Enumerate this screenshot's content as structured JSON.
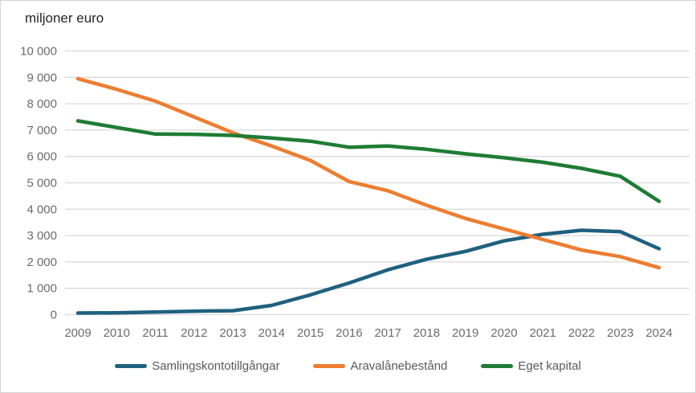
{
  "title": "miljoner euro",
  "colors": {
    "blue": "#1F607F",
    "orange": "#ED7D31",
    "green": "#1E7C34",
    "grid": "#D9D9D9",
    "tick_text": "#6B6B6B",
    "title_text": "#262626"
  },
  "chart_data": {
    "type": "line",
    "title": "miljoner euro",
    "categories": [
      "2009",
      "2010",
      "2011",
      "2012",
      "2013",
      "2014",
      "2015",
      "2016",
      "2017",
      "2018",
      "2019",
      "2020",
      "2021",
      "2022",
      "2023",
      "2024"
    ],
    "series": [
      {
        "name": "Samlingskontotillgångar",
        "color": "#1F607F",
        "values": [
          60,
          70,
          100,
          130,
          150,
          350,
          750,
          1200,
          1700,
          2100,
          2400,
          2800,
          3050,
          3200,
          3150,
          2500
        ]
      },
      {
        "name": "Aravalånebestånd",
        "color": "#ED7D31",
        "values": [
          8950,
          8550,
          8100,
          7500,
          6900,
          6400,
          5850,
          5050,
          4700,
          4150,
          3650,
          3250,
          2850,
          2450,
          2200,
          1780
        ]
      },
      {
        "name": "Eget kapital",
        "color": "#1E7C34",
        "values": [
          7350,
          7100,
          6850,
          6840,
          6800,
          6700,
          6580,
          6350,
          6400,
          6270,
          6100,
          5950,
          5780,
          5550,
          5250,
          4300
        ]
      }
    ],
    "xlabel": "",
    "ylabel": "miljoner euro",
    "ylim": [
      0,
      10000
    ],
    "y_tick_step": 1000,
    "y_tick_labels": [
      "0",
      "1 000",
      "2 000",
      "3 000",
      "4 000",
      "5 000",
      "6 000",
      "7 000",
      "8 000",
      "9 000",
      "10 000"
    ],
    "grid": "horizontal",
    "legend_position": "bottom"
  },
  "legend": {
    "items": [
      {
        "label": "Samlingskontotillgångar",
        "color": "#1F607F"
      },
      {
        "label": "Aravalånebestånd",
        "color": "#ED7D31"
      },
      {
        "label": "Eget kapital",
        "color": "#1E7C34"
      }
    ]
  }
}
